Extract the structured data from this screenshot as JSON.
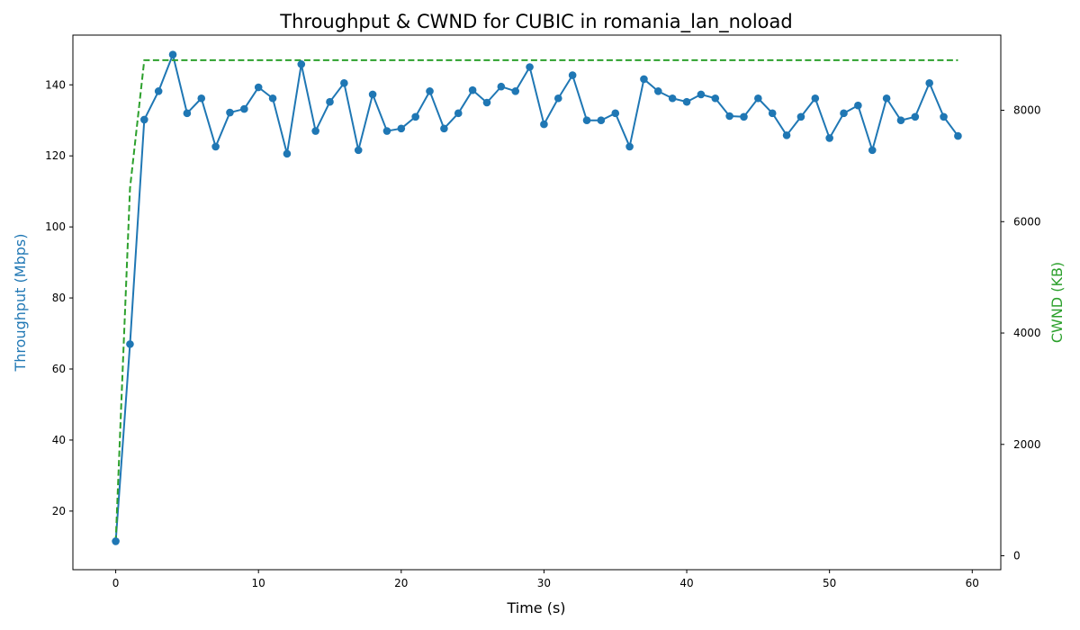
{
  "chart_data": {
    "type": "line",
    "title": "Throughput & CWND for CUBIC in romania_lan_noload",
    "xlabel": "Time (s)",
    "ylabel_left": "Throughput (Mbps)",
    "ylabel_right": "CWND (KB)",
    "xlim": [
      -3,
      62
    ],
    "ylim_left": [
      3.5,
      154
    ],
    "ylim_right": [
      -250,
      9350
    ],
    "x_ticks": [
      "0",
      "10",
      "20",
      "30",
      "40",
      "50",
      "60"
    ],
    "y_ticks_left": [
      "20",
      "40",
      "60",
      "80",
      "100",
      "120",
      "140"
    ],
    "y_ticks_right": [
      "0",
      "2000",
      "4000",
      "6000",
      "8000"
    ],
    "grid": false,
    "colors": {
      "throughput": "#1f77b4",
      "cwnd": "#2ca02c"
    },
    "series": [
      {
        "axis": "left",
        "style": "solid-with-markers",
        "x": [
          0,
          1,
          2,
          3,
          4,
          5,
          6,
          7,
          8,
          9,
          10,
          11,
          12,
          13,
          14,
          15,
          16,
          17,
          18,
          19,
          20,
          21,
          22,
          23,
          24,
          25,
          26,
          27,
          28,
          29,
          30,
          31,
          32,
          33,
          34,
          35,
          36,
          37,
          38,
          39,
          40,
          41,
          42,
          43,
          44,
          45,
          46,
          47,
          48,
          49,
          50,
          51,
          52,
          53,
          54,
          55,
          56,
          57,
          58,
          59
        ],
        "values": [
          11.5,
          67,
          130.2,
          138.2,
          148.5,
          132,
          136.2,
          122.6,
          132.2,
          133.2,
          139.3,
          136.2,
          120.6,
          145.8,
          127,
          135.2,
          140.5,
          121.6,
          137.3,
          127,
          127.7,
          131,
          138.2,
          127.7,
          132,
          138.5,
          135,
          139.5,
          138.2,
          145,
          128.9,
          136.2,
          142.7,
          130,
          130,
          132,
          122.6,
          141.6,
          138.2,
          136.2,
          135.2,
          137.3,
          136.2,
          131.2,
          131,
          136.2,
          132,
          125.8,
          131,
          136.2,
          125,
          132,
          134.2,
          121.6,
          136.2,
          130,
          131,
          140.5,
          131,
          125.6
        ]
      },
      {
        "axis": "right",
        "style": "dashed",
        "x": [
          0,
          1,
          2,
          3,
          4,
          5,
          10,
          20,
          30,
          40,
          50,
          59
        ],
        "values": [
          250,
          6600,
          8900,
          8900,
          8900,
          8900,
          8900,
          8900,
          8900,
          8900,
          8900,
          8900
        ]
      }
    ]
  }
}
